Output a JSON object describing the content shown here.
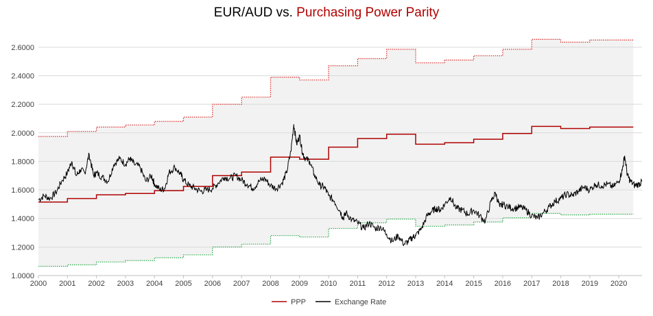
{
  "title_main": "EUR/AUD vs. ",
  "title_highlight": "Purchasing Power Parity",
  "colors": {
    "ppp": "#b00000",
    "upper_band": "#d82a2a",
    "lower_band": "#2aa84a",
    "exchange": "#000000",
    "band_fill": "#f2f2f2",
    "grid": "#d9d9d9",
    "axis_text": "#404040"
  },
  "chart_data": {
    "type": "line",
    "title": "EUR/AUD vs. Purchasing Power Parity",
    "xlabel": "",
    "ylabel": "",
    "xlim": [
      2000,
      2020.8
    ],
    "ylim": [
      1.0,
      2.7
    ],
    "y_ticks": [
      1.0,
      1.2,
      1.4,
      1.6,
      1.8,
      2.0,
      2.2,
      2.4,
      2.6
    ],
    "y_tick_labels": [
      "1.0000",
      "1.2000",
      "1.4000",
      "1.6000",
      "1.8000",
      "2.0000",
      "2.2000",
      "2.4000",
      "2.6000"
    ],
    "x_ticks": [
      2000,
      2001,
      2002,
      2003,
      2004,
      2005,
      2006,
      2007,
      2008,
      2009,
      2010,
      2011,
      2012,
      2013,
      2014,
      2015,
      2016,
      2017,
      2018,
      2019,
      2020
    ],
    "x_tick_labels": [
      "2000",
      "2001",
      "2002",
      "2003",
      "2004",
      "2005",
      "2006",
      "2007",
      "2008",
      "2009",
      "2010",
      "2011",
      "2012",
      "2013",
      "2014",
      "2015",
      "2016",
      "2017",
      "2018",
      "2019",
      "2020"
    ],
    "legend": [
      "PPP",
      "Exchange Rate"
    ],
    "legend_position": "bottom",
    "ppp_steps": {
      "years": [
        2000,
        2001,
        2002,
        2003,
        2004,
        2005,
        2006,
        2007,
        2008,
        2009,
        2010,
        2011,
        2012,
        2013,
        2014,
        2015,
        2016,
        2017,
        2018,
        2019
      ],
      "ppp": [
        1.515,
        1.54,
        1.565,
        1.575,
        1.595,
        1.625,
        1.7,
        1.725,
        1.83,
        1.815,
        1.9,
        1.96,
        1.99,
        1.92,
        1.93,
        1.955,
        1.995,
        2.045,
        2.03,
        2.04
      ],
      "upper": [
        1.975,
        2.01,
        2.04,
        2.055,
        2.08,
        2.11,
        2.2,
        2.25,
        2.39,
        2.37,
        2.47,
        2.52,
        2.585,
        2.49,
        2.51,
        2.54,
        2.585,
        2.655,
        2.635,
        2.65
      ],
      "lower": [
        1.065,
        1.075,
        1.095,
        1.105,
        1.125,
        1.145,
        1.2,
        1.22,
        1.28,
        1.27,
        1.33,
        1.37,
        1.395,
        1.345,
        1.355,
        1.375,
        1.405,
        1.435,
        1.425,
        1.43
      ],
      "end_year": 2020.5
    },
    "exchange_rate": {
      "x": [
        2000.0,
        2000.2,
        2000.4,
        2000.6,
        2000.8,
        2001.0,
        2001.15,
        2001.3,
        2001.45,
        2001.6,
        2001.75,
        2001.9,
        2002.0,
        2002.2,
        2002.4,
        2002.6,
        2002.8,
        2003.0,
        2003.15,
        2003.3,
        2003.5,
        2003.7,
        2003.9,
        2004.0,
        2004.2,
        2004.35,
        2004.5,
        2004.7,
        2004.9,
        2005.0,
        2005.2,
        2005.4,
        2005.6,
        2005.8,
        2006.0,
        2006.2,
        2006.4,
        2006.6,
        2006.8,
        2007.0,
        2007.2,
        2007.4,
        2007.6,
        2007.8,
        2008.0,
        2008.2,
        2008.4,
        2008.55,
        2008.7,
        2008.8,
        2008.9,
        2009.0,
        2009.1,
        2009.2,
        2009.35,
        2009.5,
        2009.7,
        2009.85,
        2010.0,
        2010.2,
        2010.4,
        2010.5,
        2010.6,
        2010.8,
        2011.0,
        2011.2,
        2011.4,
        2011.6,
        2011.8,
        2012.0,
        2012.2,
        2012.4,
        2012.6,
        2012.75,
        2012.9,
        2013.0,
        2013.2,
        2013.4,
        2013.55,
        2013.7,
        2013.85,
        2014.0,
        2014.2,
        2014.4,
        2014.6,
        2014.8,
        2015.0,
        2015.2,
        2015.4,
        2015.6,
        2015.75,
        2015.9,
        2016.0,
        2016.2,
        2016.4,
        2016.6,
        2016.8,
        2017.0,
        2017.2,
        2017.4,
        2017.6,
        2017.8,
        2018.0,
        2018.2,
        2018.4,
        2018.6,
        2018.8,
        2019.0,
        2019.2,
        2019.4,
        2019.6,
        2019.8,
        2020.0,
        2020.12,
        2020.2,
        2020.3,
        2020.4,
        2020.55,
        2020.7,
        2020.8
      ],
      "y": [
        1.53,
        1.56,
        1.54,
        1.58,
        1.66,
        1.72,
        1.8,
        1.7,
        1.74,
        1.72,
        1.85,
        1.7,
        1.72,
        1.69,
        1.66,
        1.78,
        1.82,
        1.78,
        1.82,
        1.78,
        1.76,
        1.66,
        1.7,
        1.64,
        1.6,
        1.61,
        1.72,
        1.76,
        1.71,
        1.67,
        1.63,
        1.61,
        1.59,
        1.6,
        1.61,
        1.65,
        1.69,
        1.68,
        1.7,
        1.67,
        1.64,
        1.61,
        1.66,
        1.68,
        1.63,
        1.61,
        1.65,
        1.72,
        1.87,
        2.06,
        1.92,
        1.98,
        1.86,
        1.82,
        1.8,
        1.71,
        1.63,
        1.62,
        1.56,
        1.52,
        1.45,
        1.4,
        1.44,
        1.39,
        1.37,
        1.33,
        1.37,
        1.33,
        1.34,
        1.29,
        1.24,
        1.28,
        1.22,
        1.24,
        1.27,
        1.28,
        1.33,
        1.42,
        1.45,
        1.47,
        1.46,
        1.5,
        1.55,
        1.47,
        1.46,
        1.43,
        1.46,
        1.42,
        1.38,
        1.52,
        1.58,
        1.48,
        1.5,
        1.48,
        1.47,
        1.48,
        1.46,
        1.42,
        1.4,
        1.44,
        1.48,
        1.52,
        1.54,
        1.57,
        1.56,
        1.59,
        1.62,
        1.6,
        1.64,
        1.63,
        1.64,
        1.62,
        1.66,
        1.74,
        1.84,
        1.7,
        1.66,
        1.63,
        1.64,
        1.66
      ]
    }
  }
}
